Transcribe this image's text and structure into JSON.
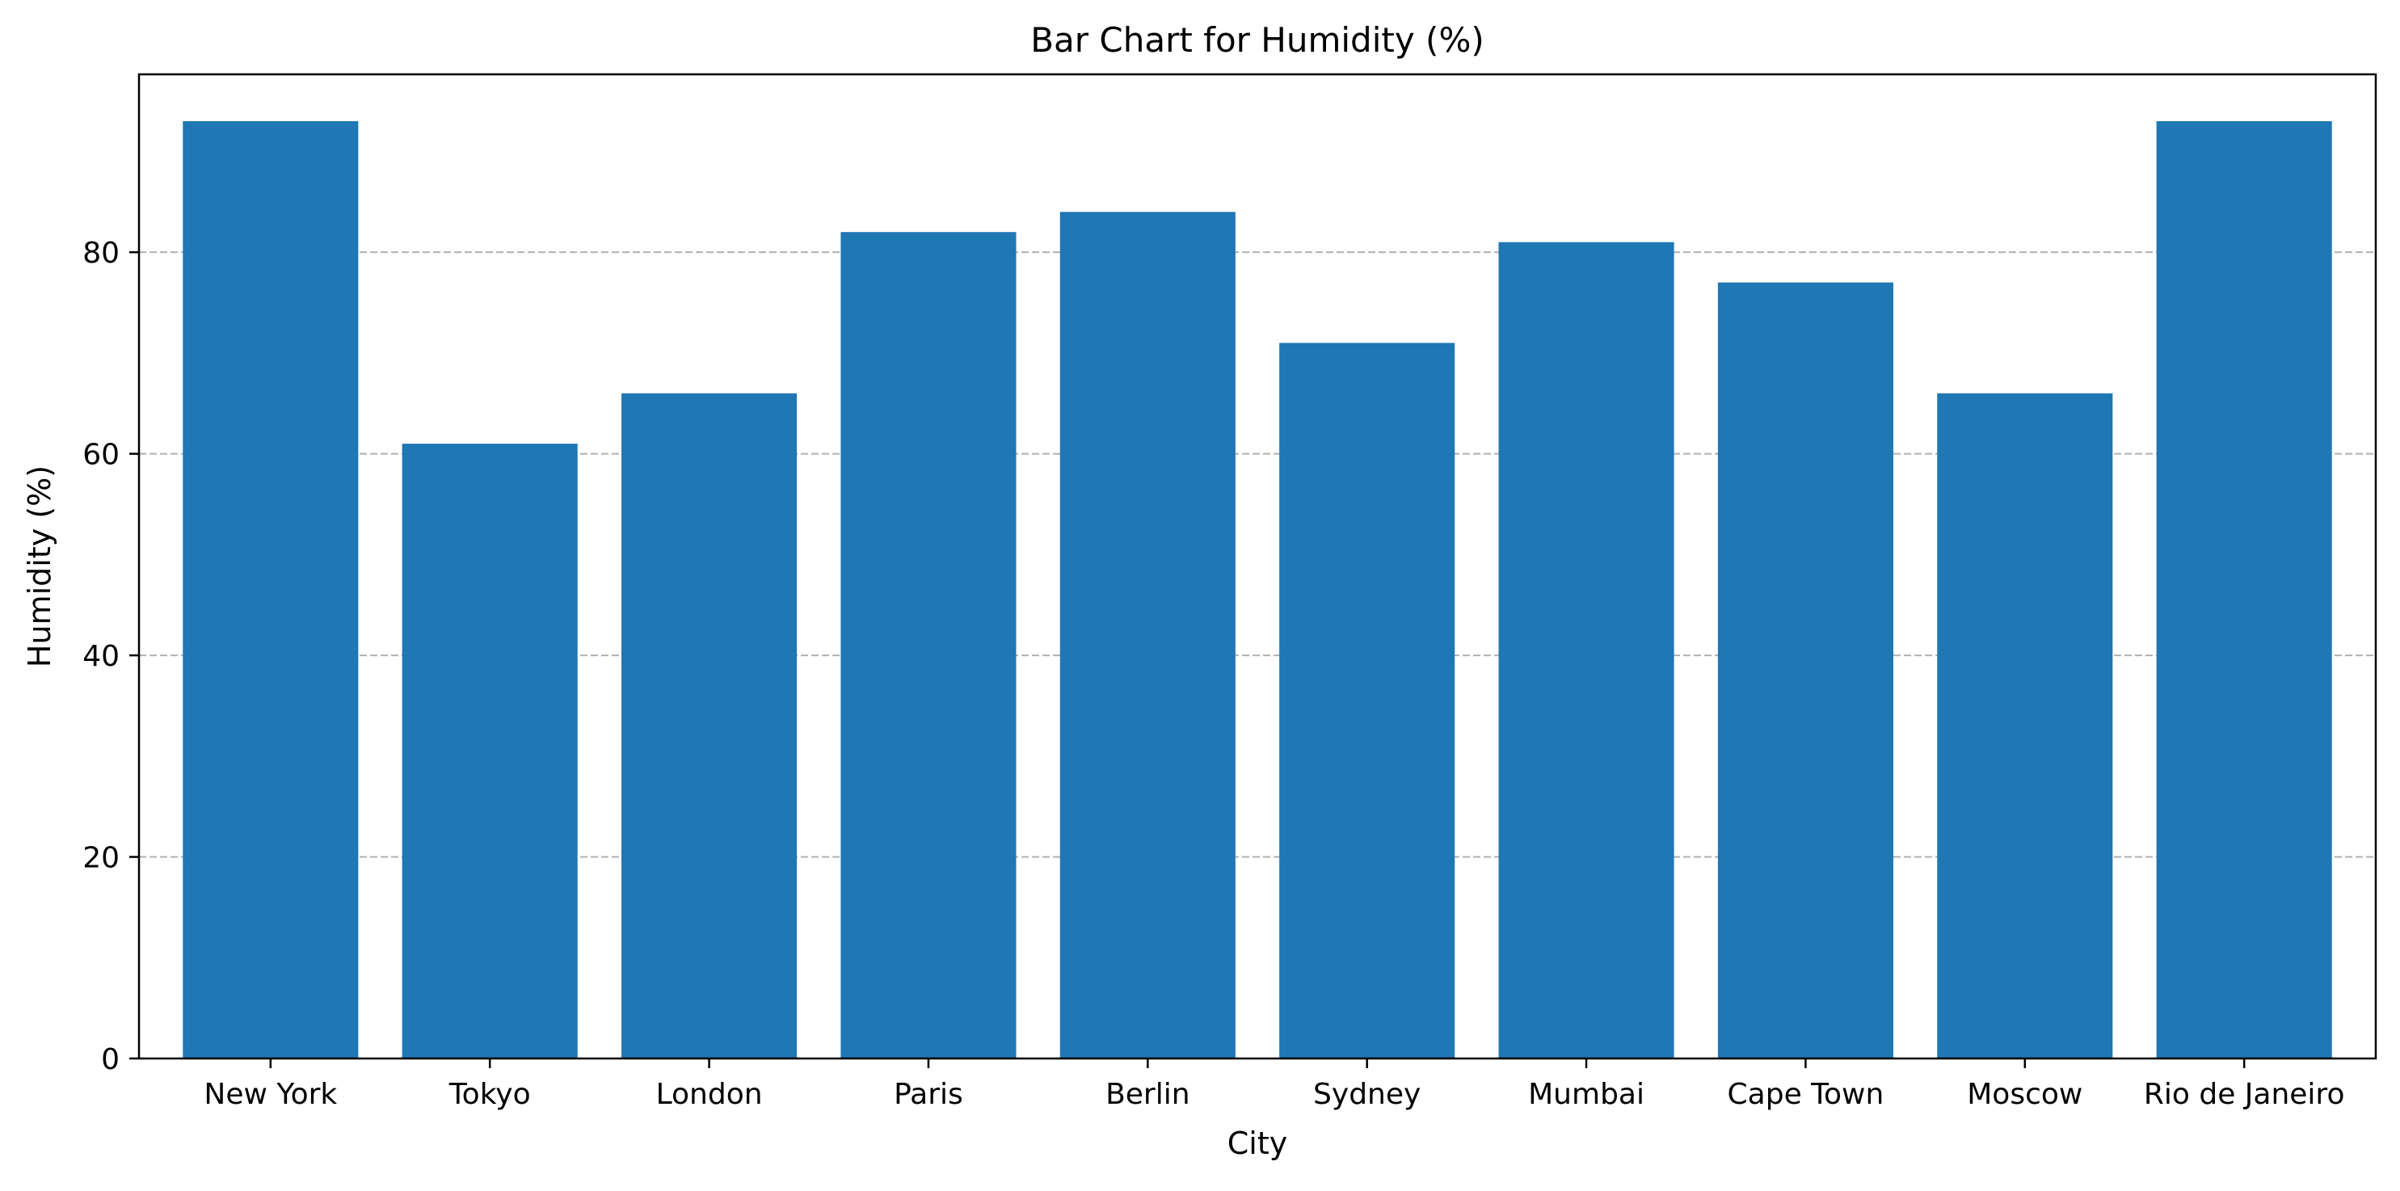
{
  "chart_data": {
    "type": "bar",
    "title": "Bar Chart for Humidity (%)",
    "xlabel": "City",
    "ylabel": "Humidity (%)",
    "categories": [
      "New York",
      "Tokyo",
      "London",
      "Paris",
      "Berlin",
      "Sydney",
      "Mumbai",
      "Cape Town",
      "Moscow",
      "Rio de Janeiro"
    ],
    "values": [
      93,
      61,
      66,
      82,
      84,
      71,
      81,
      77,
      66,
      93
    ],
    "ylim": [
      0,
      97.65
    ],
    "yticks": [
      0,
      20,
      40,
      60,
      80
    ],
    "grid": "y-dashed",
    "colors": {
      "bar": "#1f77b4",
      "grid": "#b0b0b0",
      "axis": "#000000"
    }
  }
}
